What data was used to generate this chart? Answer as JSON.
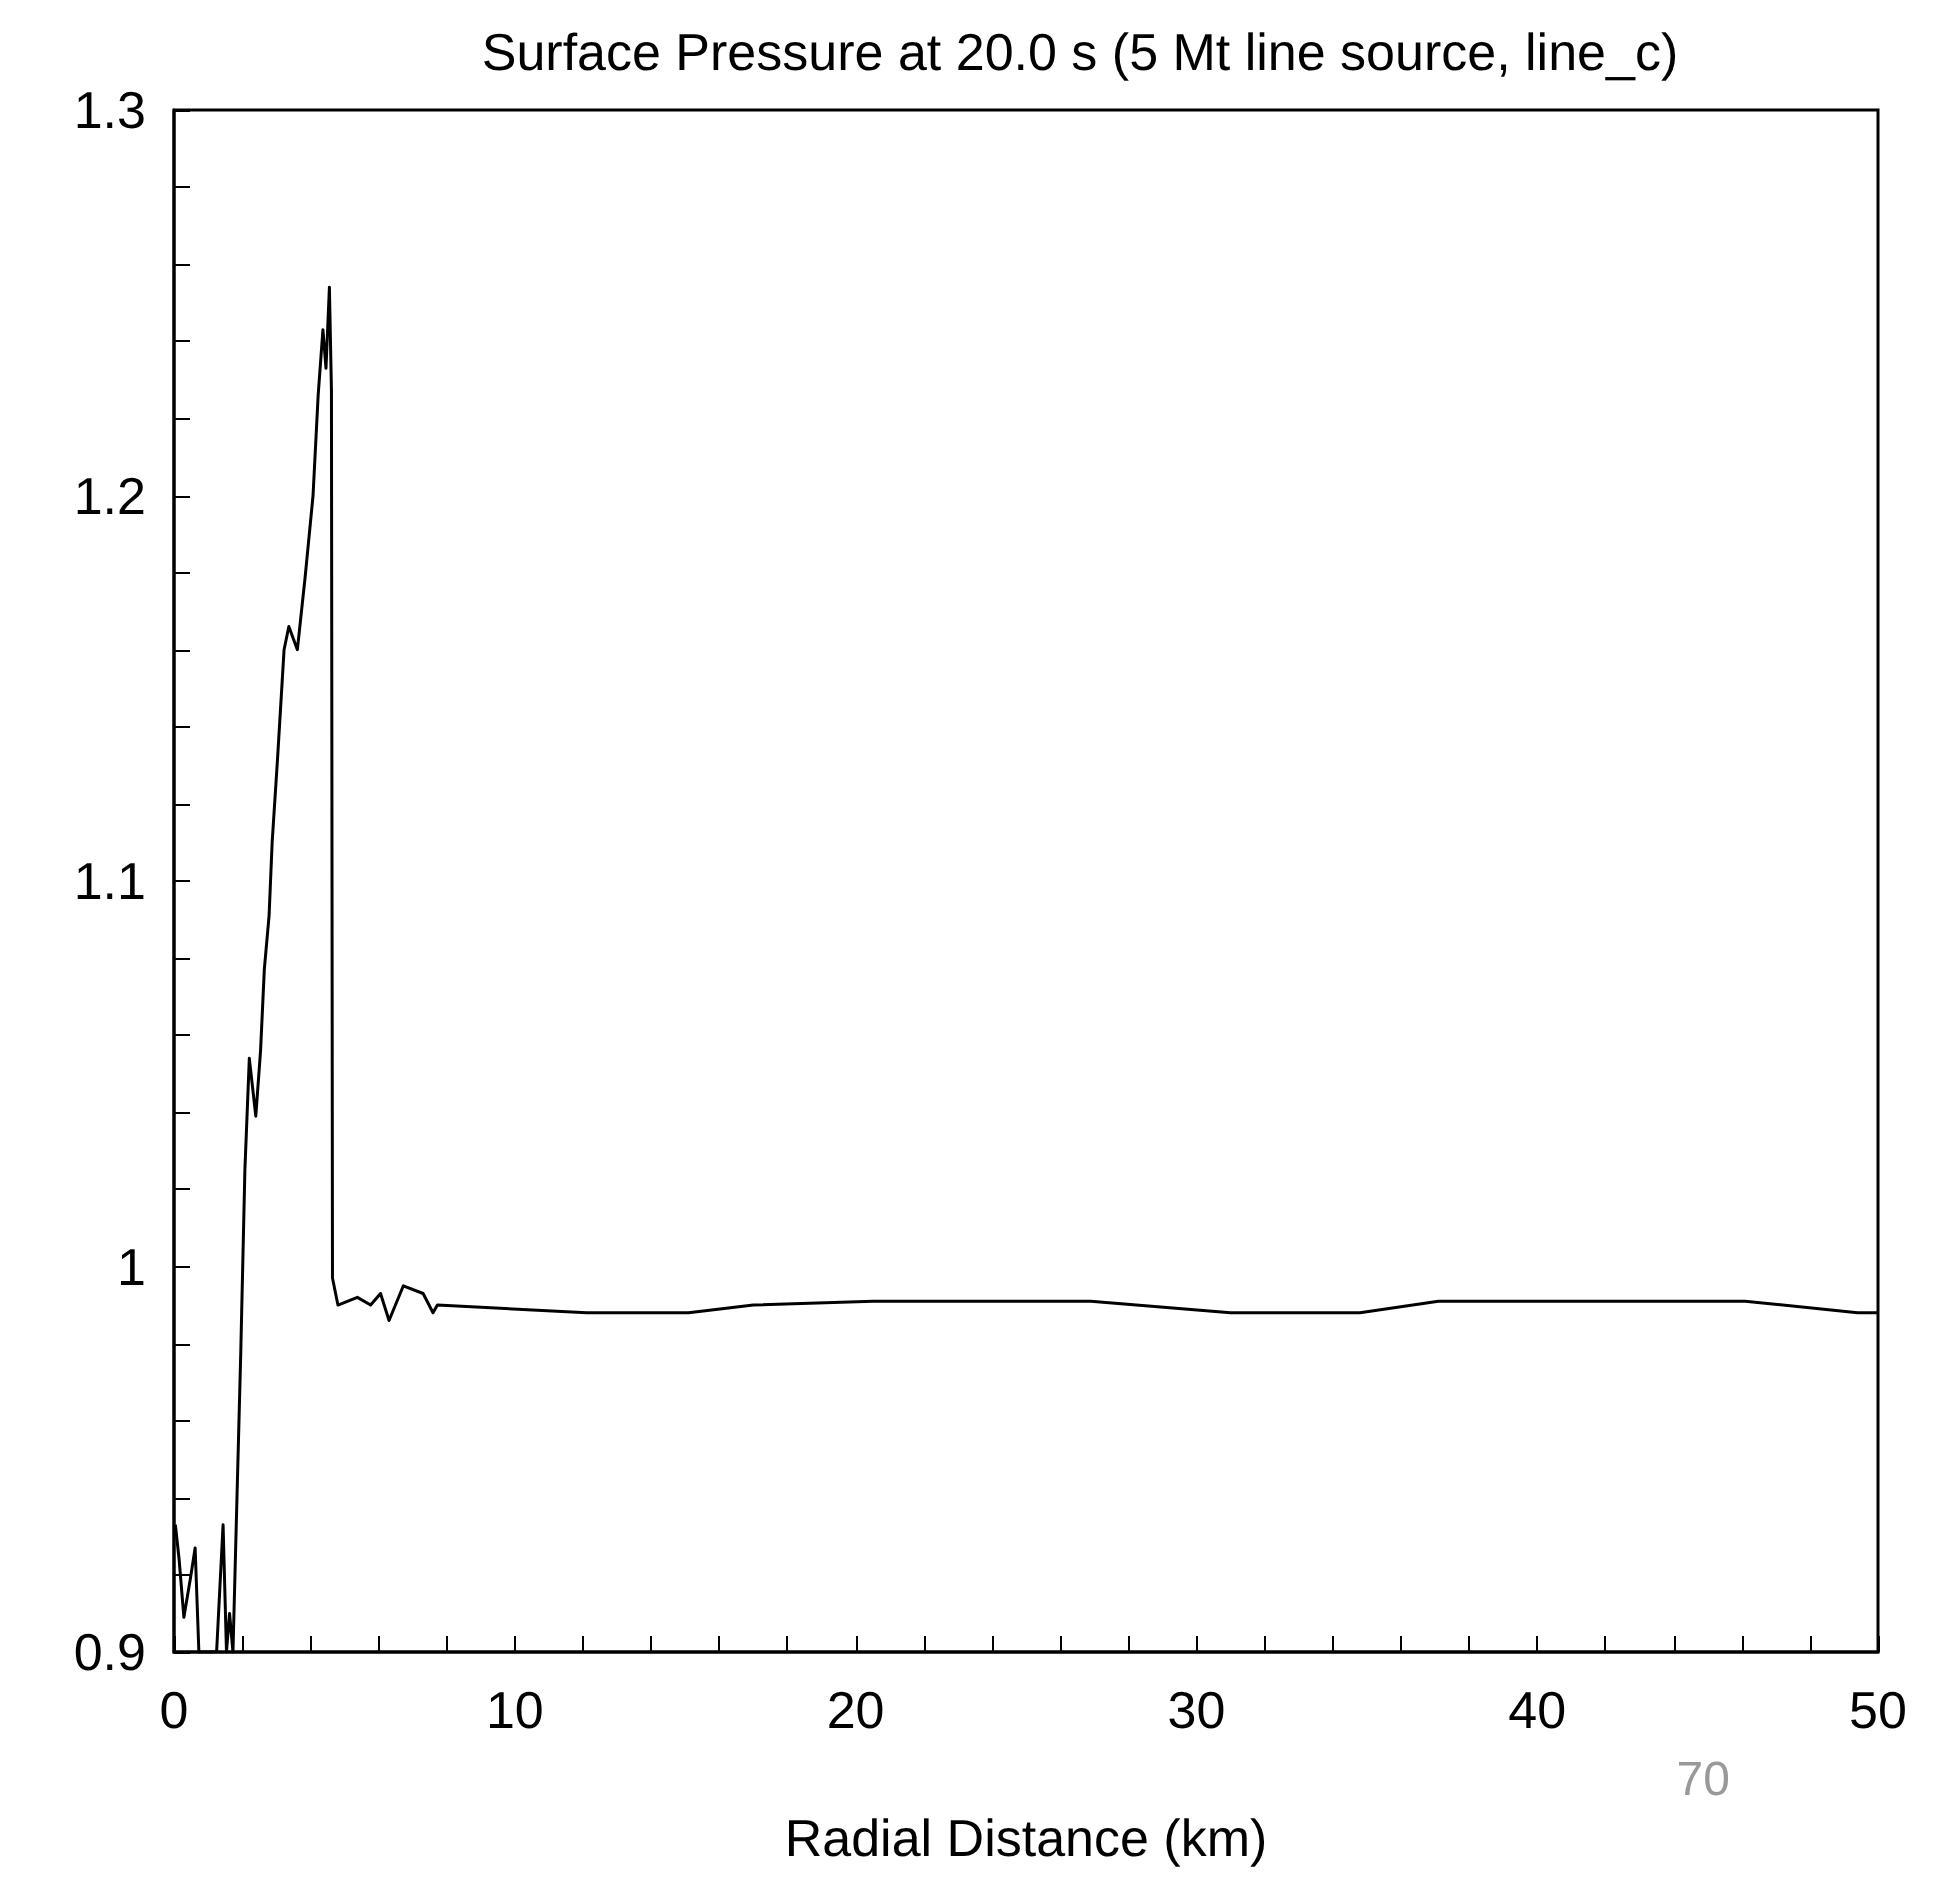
{
  "chart_data": {
    "type": "line",
    "title": "Surface Pressure at 20.0 s (5 Mt line source, line_c)",
    "xlabel": "Radial Distance (km)",
    "annotations": [
      "70"
    ],
    "series": [
      {
        "color": "#000000",
        "x": [
          0.04,
          0.15,
          0.29,
          0.48,
          0.62,
          0.73,
          1.25,
          1.44,
          1.54,
          1.63,
          1.73,
          1.83,
          1.96,
          2.08,
          2.21,
          2.4,
          2.54,
          2.65,
          2.79,
          2.88,
          3.04,
          3.23,
          3.37,
          3.62,
          3.85,
          4.08,
          4.23,
          4.37,
          4.46,
          4.56,
          4.62,
          4.65,
          4.81,
          5.38,
          5.77,
          6.06,
          6.31,
          6.73,
          7.31,
          7.6,
          7.73,
          12.1,
          15.1,
          17.0,
          20.5,
          26.9,
          31.0,
          34.8,
          37.1,
          40.3,
          46.1,
          49.4,
          50
        ],
        "values": [
          0.933,
          0.924,
          0.909,
          0.919,
          0.927,
          0.9,
          0.9,
          0.933,
          0.9,
          0.91,
          0.9,
          0.934,
          0.978,
          1.025,
          1.054,
          1.039,
          1.056,
          1.077,
          1.091,
          1.11,
          1.132,
          1.16,
          1.166,
          1.16,
          1.179,
          1.2,
          1.226,
          1.243,
          1.233,
          1.254,
          1.227,
          0.997,
          0.99,
          0.992,
          0.99,
          0.993,
          0.986,
          0.995,
          0.993,
          0.988,
          0.99,
          0.988,
          0.988,
          0.99,
          0.991,
          0.991,
          0.988,
          0.988,
          0.991,
          0.991,
          0.991,
          0.988,
          0.988
        ]
      }
    ],
    "xlim": [
      0,
      50
    ],
    "xticks": [
      0,
      {
        "value": 2,
        "label": null
      },
      {
        "value": 4,
        "label": null
      },
      {
        "value": 6,
        "label": null
      },
      {
        "value": 8,
        "label": null
      },
      10,
      {
        "value": 12,
        "label": null
      },
      {
        "value": 14,
        "label": null
      },
      {
        "value": 16,
        "label": null
      },
      {
        "value": 18,
        "label": null
      },
      20,
      {
        "value": 22,
        "label": null
      },
      {
        "value": 24,
        "label": null
      },
      {
        "value": 26,
        "label": null
      },
      {
        "value": 28,
        "label": null
      },
      30,
      {
        "value": 32,
        "label": null
      },
      {
        "value": 34,
        "label": null
      },
      {
        "value": 36,
        "label": null
      },
      {
        "value": 38,
        "label": null
      },
      40,
      {
        "value": 42,
        "label": null
      },
      {
        "value": 44,
        "label": null
      },
      {
        "value": 46,
        "label": null
      },
      {
        "value": 48,
        "label": null
      },
      50
    ],
    "ylim": [
      0.9,
      1.3
    ],
    "yticks": [
      0.9,
      {
        "value": 0.92,
        "label": null
      },
      {
        "value": 0.94,
        "label": null
      },
      {
        "value": 0.96,
        "label": null
      },
      {
        "value": 0.98,
        "label": null
      },
      1,
      {
        "value": 1.02,
        "label": null
      },
      {
        "value": 1.04,
        "label": null
      },
      {
        "value": 1.06,
        "label": null
      },
      {
        "value": 1.08,
        "label": null
      },
      1.1,
      {
        "value": 1.12,
        "label": null
      },
      {
        "value": 1.14,
        "label": null
      },
      {
        "value": 1.16,
        "label": null
      },
      {
        "value": 1.18,
        "label": null
      },
      1.2,
      {
        "value": 1.22,
        "label": null
      },
      {
        "value": 1.24,
        "label": null
      },
      {
        "value": 1.26,
        "label": null
      },
      {
        "value": 1.28,
        "label": null
      },
      1.3
    ],
    "line_style": "solid"
  }
}
